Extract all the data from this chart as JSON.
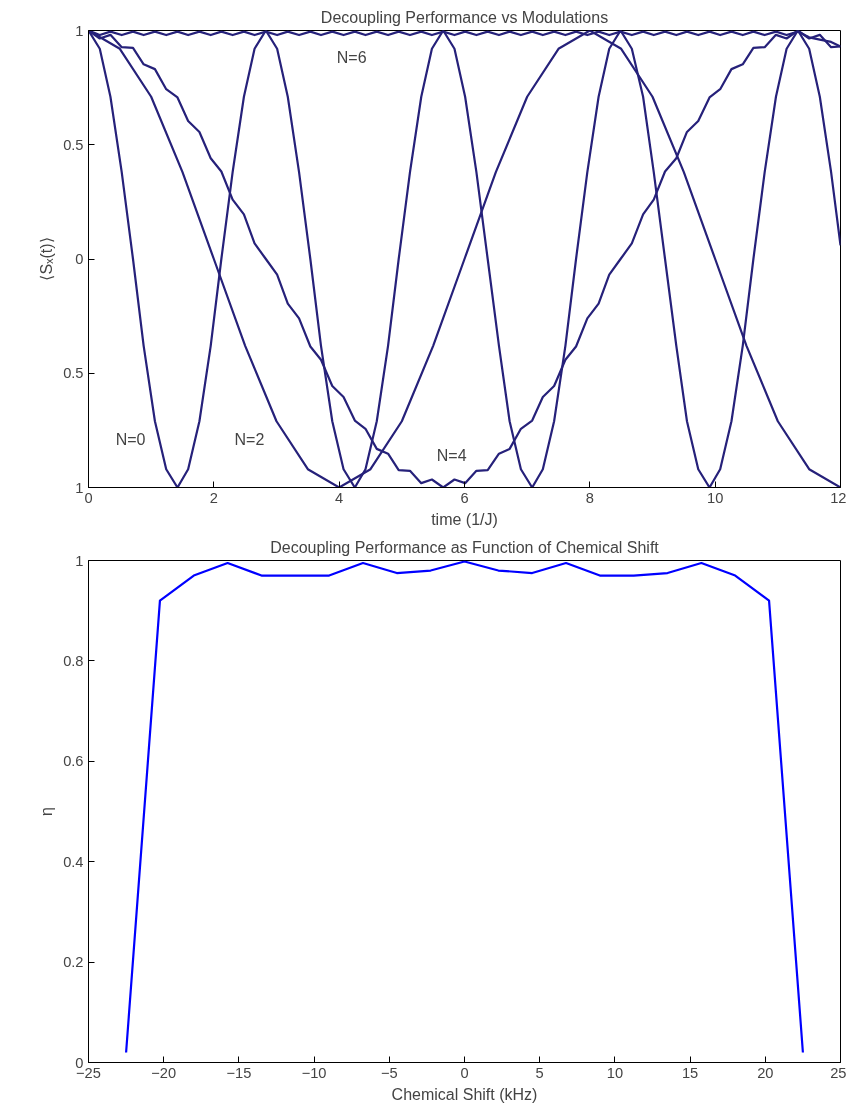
{
  "chart_data": [
    {
      "type": "line",
      "title": "Decoupling Performance vs Modulations",
      "xlabel": "time (1/J)",
      "ylabel": "⟨Sₓ(t)⟩",
      "x": [
        0,
        0.18,
        0.35,
        0.53,
        0.71,
        0.88,
        1.06,
        1.24,
        1.42,
        1.59,
        1.77,
        1.95,
        2.12,
        2.3,
        2.48,
        2.65,
        2.83,
        3.01,
        3.18,
        3.36,
        3.54,
        3.71,
        3.89,
        4.07,
        4.25,
        4.42,
        4.6,
        4.78,
        4.95,
        5.13,
        5.31,
        5.48,
        5.66,
        5.84,
        6.01,
        6.19,
        6.37,
        6.55,
        6.72,
        6.9,
        7.08,
        7.25,
        7.43,
        7.61,
        7.78,
        7.96,
        8.14,
        8.31,
        8.49,
        8.67,
        8.85,
        9.02,
        9.2,
        9.38,
        9.55,
        9.73,
        9.91,
        10.08,
        10.26,
        10.44,
        10.61,
        10.79,
        10.97,
        11.14,
        11.32,
        11.5,
        11.67,
        11.85,
        12
      ],
      "series": [
        {
          "color": "#26217a",
          "values": [
            1,
            0.92,
            0.71,
            0.38,
            0,
            -0.38,
            -0.71,
            -0.92,
            -1,
            -0.92,
            -0.71,
            -0.38,
            0,
            0.38,
            0.71,
            0.92,
            1,
            0.92,
            0.71,
            0.38,
            0,
            -0.38,
            -0.71,
            -0.92,
            -1,
            -0.92,
            -0.71,
            -0.38,
            0,
            0.38,
            0.71,
            0.92,
            1,
            0.92,
            0.71,
            0.38,
            0,
            -0.38,
            -0.71,
            -0.92,
            -1,
            -0.92,
            -0.71,
            -0.38,
            0,
            0.38,
            0.71,
            0.92,
            1,
            0.92,
            0.71,
            0.38,
            0,
            -0.38,
            -0.71,
            -0.92,
            -1,
            -0.92,
            -0.71,
            -0.38,
            0,
            0.38,
            0.71,
            0.92,
            1,
            0.92,
            0.71,
            0.38,
            0.06
          ]
        },
        {
          "color": "#26217a",
          "x": [
            0,
            0.5,
            1,
            1.5,
            2,
            2.5,
            3,
            3.5,
            4,
            4.5,
            5,
            5.5,
            6,
            6.5,
            7,
            7.5,
            8,
            8.5,
            9,
            9.5,
            10,
            10.5,
            11,
            11.5,
            12
          ],
          "values": [
            1,
            0.92,
            0.71,
            0.38,
            0,
            -0.38,
            -0.71,
            -0.92,
            -1,
            -0.92,
            -0.71,
            -0.38,
            0,
            0.38,
            0.71,
            0.92,
            1,
            0.92,
            0.71,
            0.38,
            0,
            -0.38,
            -0.71,
            -0.92,
            -1
          ]
        },
        {
          "color": "#26217a",
          "values": [
            1,
            0.965,
            0.981,
            0.927,
            0.924,
            0.852,
            0.831,
            0.743,
            0.707,
            0.604,
            0.556,
            0.441,
            0.383,
            0.26,
            0.195,
            0.068,
            0,
            -0.068,
            -0.195,
            -0.26,
            -0.383,
            -0.441,
            -0.556,
            -0.604,
            -0.707,
            -0.743,
            -0.831,
            -0.852,
            -0.924,
            -0.927,
            -0.981,
            -0.965,
            -1,
            -0.965,
            -0.981,
            -0.927,
            -0.924,
            -0.852,
            -0.831,
            -0.743,
            -0.707,
            -0.604,
            -0.556,
            -0.441,
            -0.383,
            -0.26,
            -0.195,
            -0.068,
            0,
            0.068,
            0.195,
            0.26,
            0.383,
            0.441,
            0.556,
            0.604,
            0.707,
            0.743,
            0.831,
            0.852,
            0.924,
            0.927,
            0.981,
            0.965,
            1,
            0.965,
            0.981,
            0.927,
            0.93
          ]
        },
        {
          "color": "#26217a",
          "values": [
            1,
            0.98,
            0.995,
            0.98,
            0.995,
            0.98,
            0.995,
            0.98,
            0.995,
            0.98,
            0.995,
            0.98,
            0.995,
            0.98,
            0.995,
            0.98,
            0.995,
            0.98,
            0.995,
            0.98,
            0.995,
            0.98,
            0.995,
            0.98,
            0.995,
            0.98,
            0.995,
            0.98,
            0.995,
            0.98,
            0.995,
            0.98,
            0.995,
            0.98,
            0.995,
            0.98,
            0.995,
            0.98,
            0.995,
            0.98,
            0.995,
            0.98,
            0.995,
            0.98,
            0.995,
            0.98,
            0.995,
            0.98,
            0.995,
            0.98,
            0.995,
            0.98,
            0.995,
            0.98,
            0.995,
            0.98,
            0.995,
            0.98,
            0.995,
            0.98,
            0.995,
            0.98,
            0.995,
            0.98,
            0.995,
            0.97,
            0.96,
            0.95,
            0.93
          ]
        }
      ],
      "annotations": [
        "N=0",
        "N=2",
        "N=4",
        "N=6"
      ],
      "xlim": [
        0,
        12
      ],
      "xticks": [
        0,
        2,
        4,
        6,
        8,
        10,
        12
      ],
      "ylim": [
        -1,
        1
      ],
      "yticks": [
        {
          "value": -1,
          "label": "1"
        },
        {
          "value": -0.5,
          "label": "0.5"
        },
        0,
        0.5,
        1
      ],
      "grid": false,
      "marker": "none",
      "line_style": "solid"
    },
    {
      "type": "line",
      "title": "Decoupling Performance as Function of Chemical Shift",
      "xlabel": "Chemical Shift (kHz)",
      "ylabel": "η",
      "x": [
        -22.5,
        -20.25,
        -18,
        -15.75,
        -13.5,
        -11.25,
        -9,
        -6.75,
        -4.5,
        -2.25,
        0,
        2.25,
        4.5,
        6.75,
        9,
        11.25,
        13.5,
        15.75,
        18,
        20.25,
        22.5
      ],
      "series": [
        {
          "color": "#0000ff",
          "values": [
            0.02,
            0.92,
            0.97,
            0.995,
            0.97,
            0.97,
            0.97,
            0.995,
            0.975,
            0.98,
            0.998,
            0.98,
            0.975,
            0.995,
            0.97,
            0.97,
            0.975,
            0.995,
            0.97,
            0.92,
            0.02
          ]
        }
      ],
      "xlim": [
        -25,
        25
      ],
      "xticks": [
        {
          "value": -25,
          "label": "−25"
        },
        {
          "value": -20,
          "label": "−20"
        },
        {
          "value": -15,
          "label": "−15"
        },
        {
          "value": -10,
          "label": "−10"
        },
        {
          "value": -5,
          "label": "−5"
        },
        0,
        5,
        10,
        15,
        20,
        25
      ],
      "ylim": [
        0,
        1
      ],
      "yticks": [
        0,
        0.2,
        0.4,
        0.6,
        0.8,
        1
      ],
      "grid": false,
      "marker": "none",
      "line_style": "solid"
    }
  ]
}
